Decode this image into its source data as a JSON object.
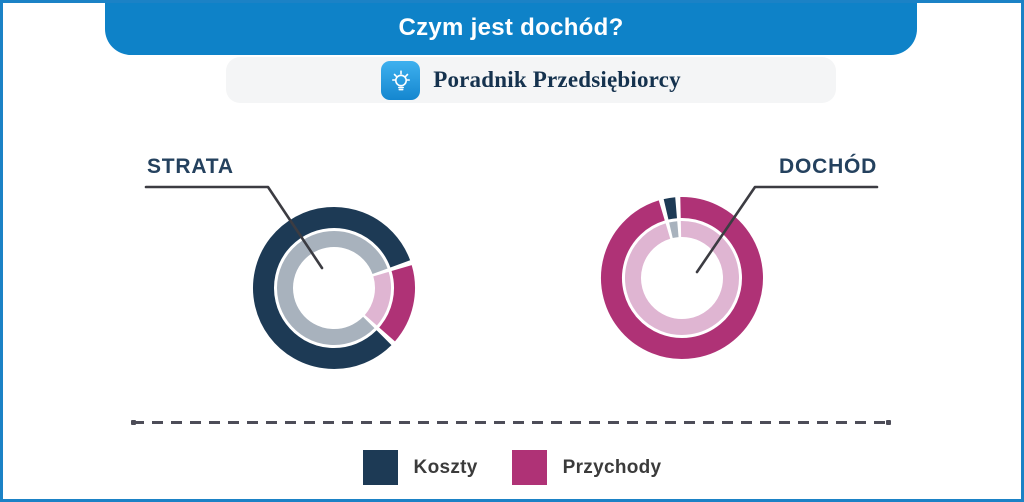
{
  "frame": {
    "border_color": "#1b82c6"
  },
  "header": {
    "title": "Czym jest dochód?",
    "bg_color": "#0e82c8",
    "text_color": "#ffffff"
  },
  "brand": {
    "name": "Poradnik Przedsiębiorcy",
    "icon": "lightbulb-icon",
    "bar_bg": "#f4f5f6",
    "icon_bg": "#2196dd",
    "text_color": "#15324e"
  },
  "colors": {
    "koszty": "#1d3a55",
    "koszty_inner": "#a8b2bd",
    "przychody": "#af3276",
    "przychody_inner": "#dfb5d2",
    "pointer_line": "#3c3c42",
    "divider": "#4d4d58"
  },
  "chart_data": [
    {
      "type": "donut",
      "annotation": "STRATA",
      "description": "Koszty exceed Przychody, resulting in a loss",
      "start_angle": 133,
      "rings": "outer = main value ring, inner = lighter echo ring",
      "segments": [
        {
          "label": "Koszty",
          "pct": 83,
          "outer_color": "#1d3a55",
          "inner_color": "#a8b2bd"
        },
        {
          "label": "Przychody",
          "pct": 17,
          "outer_color": "#af3276",
          "inner_color": "#dfb5d2"
        }
      ]
    },
    {
      "type": "donut",
      "annotation": "DOCHÓD",
      "description": "Przychody exceed Koszty, resulting in income",
      "start_angle": 357,
      "rings": "outer = main value ring, inner = lighter echo ring",
      "segments": [
        {
          "label": "Przychody",
          "pct": 96.7,
          "outer_color": "#af3276",
          "inner_color": "#dfb5d2"
        },
        {
          "label": "Koszty",
          "pct": 3.3,
          "outer_color": "#1d3a55",
          "inner_color": "#a8b2bd"
        }
      ]
    }
  ],
  "legend": {
    "items": [
      {
        "label": "Koszty",
        "color": "#1d3a55"
      },
      {
        "label": "Przychody",
        "color": "#af3276"
      }
    ]
  }
}
